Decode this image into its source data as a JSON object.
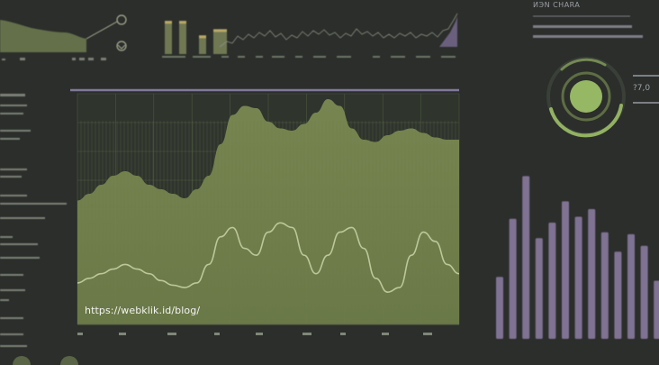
{
  "caption": "https://webklik.id/blog/",
  "header_text": "ИЭN CHARA",
  "gauge_value": "?7,0",
  "colors": {
    "background": "#2b2e2b",
    "main_area": "#7d8a57",
    "line": "#bdc79a",
    "gauge": "#9cbf67",
    "bars": "#8e7ea6",
    "divider": "#8b82a8"
  },
  "main_chart": {
    "area": [
      0.55,
      0.58,
      0.62,
      0.66,
      0.68,
      0.66,
      0.62,
      0.6,
      0.58,
      0.56,
      0.6,
      0.66,
      0.8,
      0.93,
      0.97,
      0.96,
      0.9,
      0.87,
      0.86,
      0.89,
      0.94,
      1.0,
      0.97,
      0.87,
      0.82,
      0.81,
      0.84,
      0.86,
      0.87,
      0.85,
      0.83,
      0.82,
      0.82
    ],
    "line": [
      0.18,
      0.2,
      0.22,
      0.24,
      0.26,
      0.24,
      0.22,
      0.19,
      0.17,
      0.16,
      0.18,
      0.26,
      0.38,
      0.42,
      0.33,
      0.3,
      0.4,
      0.44,
      0.42,
      0.3,
      0.22,
      0.3,
      0.4,
      0.42,
      0.33,
      0.2,
      0.14,
      0.16,
      0.3,
      0.4,
      0.36,
      0.26,
      0.22
    ]
  },
  "bar_chart": {
    "values": [
      0.32,
      0.62,
      0.84,
      0.52,
      0.6,
      0.71,
      0.63,
      0.67,
      0.55,
      0.45,
      0.54,
      0.48,
      0.3,
      0.38
    ]
  },
  "mini_bars": {
    "values": [
      0.8,
      0.8,
      0.45,
      0.6,
      0.6
    ]
  }
}
